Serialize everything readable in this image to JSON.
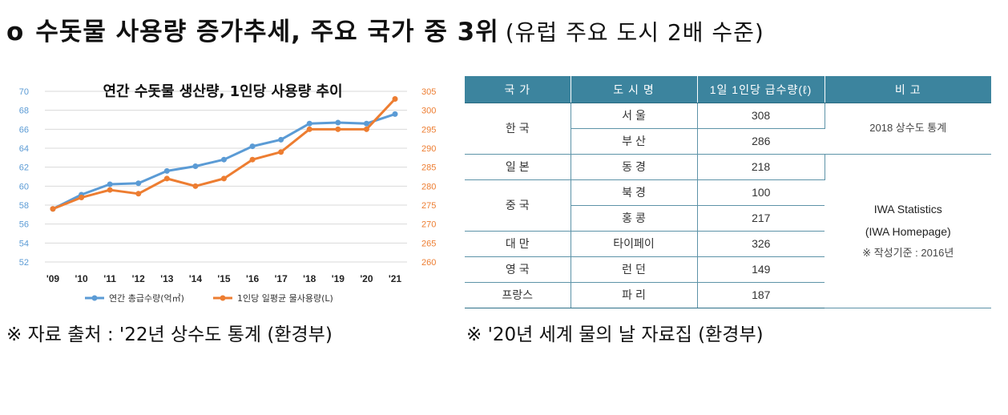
{
  "heading": {
    "bullet": "o",
    "main": "수돗물 사용량 증가추세, 주요 국가 중 3위",
    "sub": "(유럽 주요 도시 2배 수준)"
  },
  "chart_data": {
    "type": "line",
    "title": "연간 수돗물 생산량, 1인당 사용량 추이",
    "categories": [
      "'09",
      "'10",
      "'11",
      "'12",
      "'13",
      "'14",
      "'15",
      "'16",
      "'17",
      "'18",
      "'19",
      "'20",
      "'21"
    ],
    "series": [
      {
        "name": "연간 총급수량(억㎥)",
        "axis": "left",
        "color": "#5b9bd5",
        "values": [
          57.6,
          59.1,
          60.2,
          60.3,
          61.6,
          62.1,
          62.8,
          64.2,
          64.9,
          66.6,
          66.7,
          66.6,
          67.6
        ]
      },
      {
        "name": "1인당 일평균 물사용량(L)",
        "axis": "right",
        "color": "#ed7d31",
        "values": [
          274,
          277,
          279,
          278,
          282,
          280,
          282,
          287,
          289,
          295,
          295,
          295,
          303
        ]
      }
    ],
    "y_left": {
      "min": 52,
      "max": 70,
      "step": 2,
      "ticks": [
        "52",
        "54",
        "56",
        "58",
        "60",
        "62",
        "64",
        "66",
        "68",
        "70"
      ],
      "color": "#5b9bd5"
    },
    "y_right": {
      "min": 260,
      "max": 305,
      "step": 5,
      "ticks": [
        "260",
        "265",
        "270",
        "275",
        "280",
        "285",
        "290",
        "295",
        "300",
        "305"
      ],
      "color": "#ed7d31"
    },
    "grid": true,
    "legend": "bottom"
  },
  "table": {
    "headers": [
      "국 가",
      "도 시 명",
      "1일 1인당 급수량(ℓ)",
      "비 고"
    ],
    "rows": [
      {
        "country": "한 국",
        "city": "서 울",
        "value": "308"
      },
      {
        "country": "",
        "city": "부 산",
        "value": "286"
      },
      {
        "country": "일 본",
        "city": "동 경",
        "value": "218"
      },
      {
        "country": "중 국",
        "city": "북 경",
        "value": "100"
      },
      {
        "country": "",
        "city": "홍 콩",
        "value": "217"
      },
      {
        "country": "대 만",
        "city": "타이페이",
        "value": "326"
      },
      {
        "country": "영 국",
        "city": "런 던",
        "value": "149"
      },
      {
        "country": "프랑스",
        "city": "파 리",
        "value": "187"
      }
    ],
    "note_korea": "2018 상수도 통계",
    "note_iwa_line1": "IWA Statistics",
    "note_iwa_line2": "(IWA Homepage)",
    "note_iwa_line3": "※ 작성기준 : 2016년"
  },
  "sources": {
    "left": "※ 자료 출처 : '22년 상수도 통계 (환경부)",
    "right": "※ '20년 세계 물의 날 자료집 (환경부)"
  }
}
